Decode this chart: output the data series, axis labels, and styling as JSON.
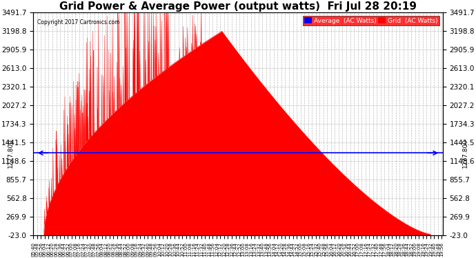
{
  "title": "Grid Power & Average Power (output watts)  Fri Jul 28 20:19",
  "copyright": "Copyright 2017 Cartronics.com",
  "average_label": "Average  (AC Watts)",
  "grid_label": "Grid  (AC Watts)",
  "average_value": 1277.8,
  "y_ticks": [
    -23.0,
    269.9,
    562.8,
    855.7,
    1148.6,
    1441.5,
    1734.3,
    2027.2,
    2320.1,
    2613.0,
    2905.9,
    3198.8,
    3491.7
  ],
  "ylim_min": -23.0,
  "ylim_max": 3491.7,
  "x_start_min": 340,
  "x_end_min": 1198,
  "solar_start_min": 362,
  "solar_end_min": 1172,
  "solar_peak_min": 735,
  "peak_value": 3200.0,
  "background_color": "#ffffff",
  "grid_color": "#bbbbbb",
  "fill_color": "#ff0000",
  "avg_line_color": "#0000ff",
  "title_fontsize": 11,
  "tick_fontsize": 7.5,
  "x_tick_interval_min": 8,
  "avg_label_fontsize": 7,
  "avg_label_text": "1277.800"
}
